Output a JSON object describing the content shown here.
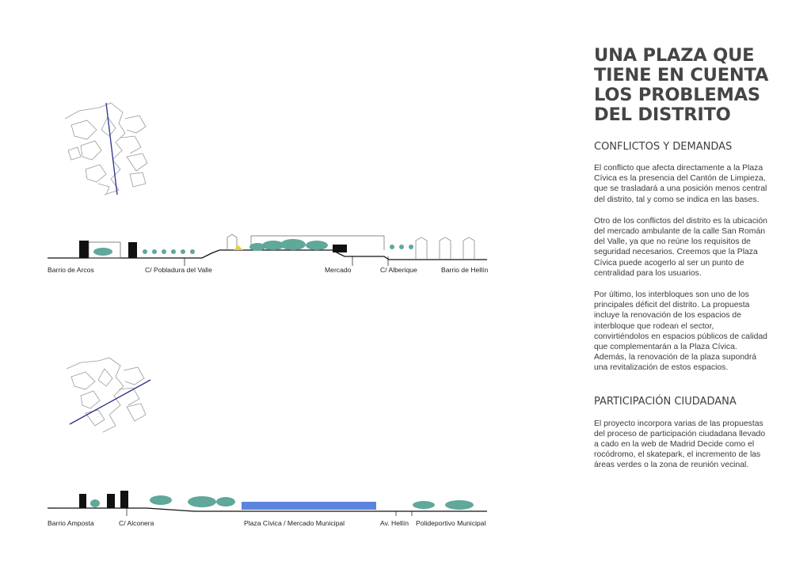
{
  "heading": {
    "title_lines": [
      "UNA PLAZA QUE",
      "TIENE EN CUENTA",
      "LOS PROBLEMAS",
      "DEL DISTRITO"
    ]
  },
  "conflicts": {
    "heading": "CONFLICTOS Y DEMANDAS",
    "paragraphs": [
      "El conflicto que afecta directamente a la Plaza Cívica es la presencia del Cantón de Limpieza, que se trasladará a una posición menos central del distrito, tal y como se indica en las bases.",
      "Otro de los conflictos del distrito es la ubicación del mercado ambulante de la calle San Román del Valle, ya que no reúne los requisitos de seguridad necesarios. Creemos que la Plaza Cívica puede acogerlo al ser un punto de centralidad para los usuarios.",
      "Por último, los interbloques son uno de los principales déficit del distrito. La propuesta incluye la renovación de los espacios de interbloque que rodean el sector, convirtiéndolos en espacios públicos de calidad que complementarán a la Plaza Cívica. Además, la renovación de la plaza supondrá una revitalización de estos espacios."
    ]
  },
  "participation": {
    "heading": "PARTICIPACIÓN CIUDADANA",
    "paragraph": "El proyecto incorpora varias de las propuestas del proceso de participación ciudadana llevado a cado en la web de Madrid Decide como el rocódromo, el skatepark, el incremento de las áreas verdes o la zona de reunión vecinal."
  },
  "section_1": {
    "labels": [
      "Barrio de Arcos",
      "C/ Pobladura del Valle",
      "Mercado",
      "C/ Alberique",
      "Barrio de Hellín"
    ]
  },
  "section_2": {
    "labels": [
      "Barrio Amposta",
      "C/ Alconera",
      "Plaza Cívica / Mercado Municipal",
      "Av. Hellín",
      "Polideportivo Municipal"
    ]
  },
  "colors": {
    "section_line": "#111111",
    "cut_line": "#2b2f8f",
    "trees": "#5fa89a",
    "plan_lines": "#9a9a9a",
    "market_highlight": "#3f6fd6",
    "marker": "#e8d233"
  }
}
